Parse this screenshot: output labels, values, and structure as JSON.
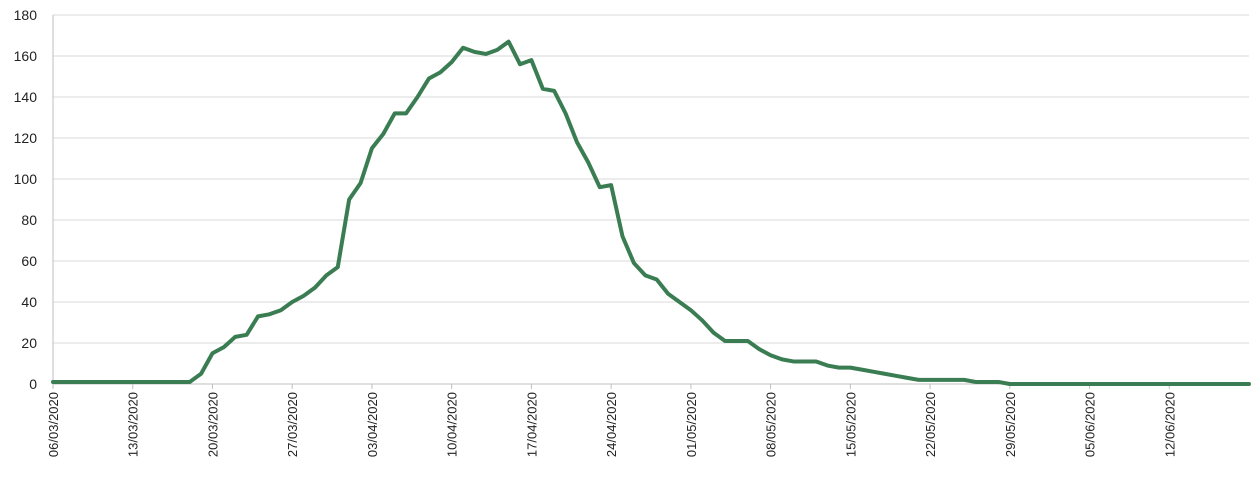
{
  "chart_data": {
    "type": "line",
    "title": "",
    "xlabel": "",
    "ylabel": "",
    "ylim": [
      0,
      180
    ],
    "yticks": [
      0,
      20,
      40,
      60,
      80,
      100,
      120,
      140,
      160,
      180
    ],
    "xlim": [
      "06/03/2020",
      "19/06/2020"
    ],
    "xtick_labels": [
      "06/03/2020",
      "13/03/2020",
      "20/03/2020",
      "27/03/2020",
      "03/04/2020",
      "10/04/2020",
      "17/04/2020",
      "24/04/2020",
      "01/05/2020",
      "08/05/2020",
      "15/05/2020",
      "22/05/2020",
      "29/05/2020",
      "05/06/2020",
      "12/06/2020"
    ],
    "grid": "horizontal",
    "legend": "none",
    "series": [
      {
        "color": "#3a7d52",
        "x": [
          "06/03/2020",
          "07/03/2020",
          "08/03/2020",
          "09/03/2020",
          "10/03/2020",
          "11/03/2020",
          "12/03/2020",
          "13/03/2020",
          "14/03/2020",
          "15/03/2020",
          "16/03/2020",
          "17/03/2020",
          "18/03/2020",
          "19/03/2020",
          "20/03/2020",
          "21/03/2020",
          "22/03/2020",
          "23/03/2020",
          "24/03/2020",
          "25/03/2020",
          "26/03/2020",
          "27/03/2020",
          "28/03/2020",
          "29/03/2020",
          "30/03/2020",
          "31/03/2020",
          "01/04/2020",
          "02/04/2020",
          "03/04/2020",
          "04/04/2020",
          "05/04/2020",
          "06/04/2020",
          "07/04/2020",
          "08/04/2020",
          "09/04/2020",
          "10/04/2020",
          "11/04/2020",
          "12/04/2020",
          "13/04/2020",
          "14/04/2020",
          "15/04/2020",
          "16/04/2020",
          "17/04/2020",
          "18/04/2020",
          "19/04/2020",
          "20/04/2020",
          "21/04/2020",
          "22/04/2020",
          "23/04/2020",
          "24/04/2020",
          "25/04/2020",
          "26/04/2020",
          "27/04/2020",
          "28/04/2020",
          "29/04/2020",
          "30/04/2020",
          "01/05/2020",
          "02/05/2020",
          "03/05/2020",
          "04/05/2020",
          "05/05/2020",
          "06/05/2020",
          "07/05/2020",
          "08/05/2020",
          "09/05/2020",
          "10/05/2020",
          "11/05/2020",
          "12/05/2020",
          "13/05/2020",
          "14/05/2020",
          "15/05/2020",
          "16/05/2020",
          "17/05/2020",
          "18/05/2020",
          "19/05/2020",
          "20/05/2020",
          "21/05/2020",
          "22/05/2020",
          "23/05/2020",
          "24/05/2020",
          "25/05/2020",
          "26/05/2020",
          "27/05/2020",
          "28/05/2020",
          "29/05/2020",
          "30/05/2020",
          "31/05/2020",
          "01/06/2020",
          "02/06/2020",
          "03/06/2020",
          "04/06/2020",
          "05/06/2020",
          "06/06/2020",
          "07/06/2020",
          "08/06/2020",
          "09/06/2020",
          "10/06/2020",
          "11/06/2020",
          "12/06/2020",
          "13/06/2020",
          "14/06/2020",
          "15/06/2020",
          "16/06/2020",
          "17/06/2020",
          "18/06/2020",
          "19/06/2020"
        ],
        "y": [
          1,
          1,
          1,
          1,
          1,
          1,
          1,
          1,
          1,
          1,
          1,
          1,
          1,
          5,
          15,
          18,
          23,
          24,
          33,
          34,
          36,
          40,
          43,
          47,
          53,
          57,
          90,
          98,
          115,
          122,
          132,
          132,
          140,
          149,
          152,
          157,
          164,
          162,
          161,
          163,
          167,
          156,
          158,
          144,
          143,
          132,
          118,
          108,
          96,
          97,
          72,
          59,
          53,
          51,
          44,
          40,
          36,
          31,
          25,
          21,
          21,
          21,
          17,
          14,
          12,
          11,
          11,
          11,
          9,
          8,
          8,
          7,
          6,
          5,
          4,
          3,
          2,
          2,
          2,
          2,
          2,
          1,
          1,
          1,
          0,
          0,
          0,
          0,
          0,
          0,
          0,
          0,
          0,
          0,
          0,
          0,
          0,
          0,
          0,
          0,
          0,
          0,
          0,
          0,
          0,
          0
        ]
      }
    ]
  }
}
